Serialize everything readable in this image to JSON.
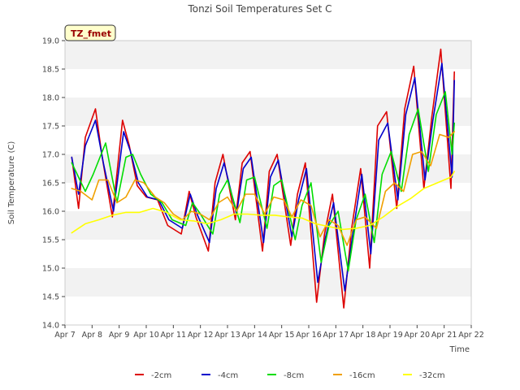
{
  "chart_data": {
    "type": "line",
    "title": "Tonzi Soil Temperatures Set C",
    "xlabel": "Time",
    "ylabel": "Soil Temperature (C)",
    "annotation": "TZ_fmet",
    "x_ticks": [
      "Apr 7",
      "Apr 8",
      "Apr 9",
      "Apr 10",
      "Apr 11",
      "Apr 12",
      "Apr 13",
      "Apr 14",
      "Apr 15",
      "Apr 16",
      "Apr 17",
      "Apr 18",
      "Apr 19",
      "Apr 20",
      "Apr 21",
      "Apr 22"
    ],
    "y_ticks": [
      "14.0",
      "14.5",
      "15.0",
      "15.5",
      "16.0",
      "16.5",
      "17.0",
      "17.5",
      "18.0",
      "18.5",
      "19.0"
    ],
    "xlim": [
      "Apr 7",
      "Apr 22"
    ],
    "ylim": [
      14.0,
      19.0
    ],
    "grid": "horizontal bands",
    "legend_position": "bottom",
    "series": [
      {
        "name": "-2cm",
        "color": "#dd0000",
        "x": [
          "Apr 7 06:00",
          "Apr 7 12:00",
          "Apr 7 18:00",
          "Apr 8 03:00",
          "Apr 8 09:00",
          "Apr 8 18:00",
          "Apr 9 03:00",
          "Apr 9 09:00",
          "Apr 9 16:00",
          "Apr 10 00:00",
          "Apr 10 10:00",
          "Apr 10 19:00",
          "Apr 11 07:00",
          "Apr 11 14:00",
          "Apr 11 20:00",
          "Apr 12 07:00",
          "Apr 12 13:00",
          "Apr 12 20:00",
          "Apr 13 07:00",
          "Apr 13 13:00",
          "Apr 13 20:00",
          "Apr 14 07:00",
          "Apr 14 13:00",
          "Apr 14 20:00",
          "Apr 15 08:00",
          "Apr 15 14:00",
          "Apr 15 21:00",
          "Apr 16 07:00",
          "Apr 16 14:00",
          "Apr 16 21:00",
          "Apr 17 07:00",
          "Apr 17 14:00",
          "Apr 17 22:00",
          "Apr 18 06:00",
          "Apr 18 13:00",
          "Apr 18 21:00",
          "Apr 19 06:00",
          "Apr 19 13:00",
          "Apr 19 21:00",
          "Apr 20 06:00",
          "Apr 20 13:00",
          "Apr 20 21:00",
          "Apr 21 06:00",
          "Apr 21 09:00"
        ],
        "values": [
          16.95,
          16.05,
          17.3,
          17.8,
          16.95,
          15.9,
          17.6,
          17.15,
          16.45,
          16.25,
          16.2,
          15.75,
          15.6,
          16.35,
          15.9,
          15.3,
          16.5,
          17.0,
          15.85,
          16.85,
          17.05,
          15.3,
          16.7,
          17.0,
          15.4,
          16.3,
          16.85,
          14.4,
          15.6,
          16.3,
          14.3,
          15.7,
          16.75,
          15.0,
          17.5,
          17.75,
          16.05,
          17.8,
          18.55,
          16.4,
          17.65,
          18.85,
          16.4,
          18.45
        ]
      },
      {
        "name": "-4cm",
        "color": "#0000cc",
        "x": [
          "Apr 7 06:00",
          "Apr 7 12:00",
          "Apr 7 18:00",
          "Apr 8 03:00",
          "Apr 8 10:00",
          "Apr 8 19:00",
          "Apr 9 04:00",
          "Apr 9 10:00",
          "Apr 9 17:00",
          "Apr 10 01:00",
          "Apr 10 11:00",
          "Apr 10 20:00",
          "Apr 11 08:00",
          "Apr 11 15:00",
          "Apr 11 21:00",
          "Apr 12 08:00",
          "Apr 12 14:00",
          "Apr 12 21:00",
          "Apr 13 08:00",
          "Apr 13 14:00",
          "Apr 13 21:00",
          "Apr 14 08:00",
          "Apr 14 14:00",
          "Apr 14 21:00",
          "Apr 15 09:00",
          "Apr 15 15:00",
          "Apr 15 22:00",
          "Apr 16 08:00",
          "Apr 16 15:00",
          "Apr 16 22:00",
          "Apr 17 08:00",
          "Apr 17 15:00",
          "Apr 17 23:00",
          "Apr 18 07:00",
          "Apr 18 14:00",
          "Apr 18 22:00",
          "Apr 19 07:00",
          "Apr 19 14:00",
          "Apr 19 22:00",
          "Apr 20 07:00",
          "Apr 20 14:00",
          "Apr 20 22:00",
          "Apr 21 07:00",
          "Apr 21 09:00"
        ],
        "values": [
          16.95,
          16.3,
          17.15,
          17.6,
          16.85,
          16.0,
          17.4,
          17.05,
          16.5,
          16.25,
          16.2,
          15.85,
          15.7,
          16.3,
          15.95,
          15.45,
          16.4,
          16.85,
          15.95,
          16.75,
          16.95,
          15.45,
          16.6,
          16.9,
          15.55,
          16.2,
          16.75,
          14.75,
          15.55,
          16.15,
          14.6,
          15.6,
          16.65,
          15.25,
          17.25,
          17.55,
          16.2,
          17.7,
          18.35,
          16.55,
          17.6,
          18.6,
          16.6,
          18.3
        ]
      },
      {
        "name": "-8cm",
        "color": "#00dd00",
        "x": [
          "Apr 7 06:00",
          "Apr 7 18:00",
          "Apr 8 01:00",
          "Apr 8 12:00",
          "Apr 8 22:00",
          "Apr 9 06:00",
          "Apr 9 12:00",
          "Apr 9 19:00",
          "Apr 10 04:00",
          "Apr 10 14:00",
          "Apr 10 23:00",
          "Apr 11 11:00",
          "Apr 11 17:00",
          "Apr 12 00:00",
          "Apr 12 11:00",
          "Apr 12 17:00",
          "Apr 13 00:00",
          "Apr 13 11:00",
          "Apr 13 17:00",
          "Apr 14 00:00",
          "Apr 14 11:00",
          "Apr 14 17:00",
          "Apr 15 00:00",
          "Apr 15 12:00",
          "Apr 15 18:00",
          "Apr 16 02:00",
          "Apr 16 11:00",
          "Apr 16 18:00",
          "Apr 17 02:00",
          "Apr 17 11:00",
          "Apr 17 18:00",
          "Apr 18 02:00",
          "Apr 18 10:00",
          "Apr 18 17:00",
          "Apr 19 01:00",
          "Apr 19 10:00",
          "Apr 19 17:00",
          "Apr 20 01:00",
          "Apr 20 10:00",
          "Apr 20 17:00",
          "Apr 21 01:00",
          "Apr 21 07:00",
          "Apr 21 09:00"
        ],
        "values": [
          16.85,
          16.35,
          16.65,
          17.2,
          16.15,
          16.95,
          17.0,
          16.65,
          16.3,
          16.15,
          15.85,
          15.75,
          16.15,
          15.95,
          15.6,
          16.3,
          16.55,
          15.8,
          16.55,
          16.6,
          15.7,
          16.45,
          16.55,
          15.5,
          16.1,
          16.5,
          15.1,
          15.75,
          16.0,
          14.95,
          15.85,
          16.3,
          15.45,
          16.65,
          17.05,
          16.35,
          17.35,
          17.8,
          16.7,
          17.7,
          18.1,
          17.0,
          17.55
        ]
      },
      {
        "name": "-16cm",
        "color": "#f0a000",
        "x": [
          "Apr 7 06:00",
          "Apr 7 14:00",
          "Apr 8 00:00",
          "Apr 8 06:00",
          "Apr 8 14:00",
          "Apr 8 22:00",
          "Apr 9 06:00",
          "Apr 9 14:00",
          "Apr 9 22:00",
          "Apr 10 08:00",
          "Apr 10 16:00",
          "Apr 11 00:00",
          "Apr 11 08:00",
          "Apr 11 16:00",
          "Apr 12 00:00",
          "Apr 12 08:00",
          "Apr 12 16:00",
          "Apr 13 00:00",
          "Apr 13 08:00",
          "Apr 13 16:00",
          "Apr 14 00:00",
          "Apr 14 09:00",
          "Apr 14 17:00",
          "Apr 15 02:00",
          "Apr 15 09:00",
          "Apr 15 17:00",
          "Apr 16 02:00",
          "Apr 16 10:00",
          "Apr 16 18:00",
          "Apr 17 02:00",
          "Apr 17 10:00",
          "Apr 17 18:00",
          "Apr 18 02:00",
          "Apr 18 12:00",
          "Apr 18 20:00",
          "Apr 19 04:00",
          "Apr 19 12:00",
          "Apr 19 20:00",
          "Apr 20 04:00",
          "Apr 20 12:00",
          "Apr 20 20:00",
          "Apr 21 04:00",
          "Apr 21 09:00"
        ],
        "values": [
          16.4,
          16.35,
          16.2,
          16.55,
          16.55,
          16.15,
          16.25,
          16.55,
          16.5,
          16.25,
          16.15,
          15.95,
          15.85,
          16.0,
          15.95,
          15.85,
          16.15,
          16.25,
          16.0,
          16.3,
          16.3,
          15.95,
          16.25,
          16.2,
          15.9,
          16.2,
          16.1,
          15.55,
          15.85,
          15.75,
          15.4,
          15.85,
          15.9,
          15.7,
          16.35,
          16.5,
          16.35,
          17.0,
          17.05,
          16.8,
          17.35,
          17.3,
          17.4
        ]
      },
      {
        "name": "-32cm",
        "color": "#ffff00",
        "x": [
          "Apr 7 06:00",
          "Apr 7 18:00",
          "Apr 8 06:00",
          "Apr 8 18:00",
          "Apr 9 06:00",
          "Apr 9 18:00",
          "Apr 10 06:00",
          "Apr 10 18:00",
          "Apr 11 06:00",
          "Apr 11 18:00",
          "Apr 12 06:00",
          "Apr 12 18:00",
          "Apr 13 06:00",
          "Apr 13 18:00",
          "Apr 14 06:00",
          "Apr 14 18:00",
          "Apr 15 06:00",
          "Apr 15 18:00",
          "Apr 16 06:00",
          "Apr 16 18:00",
          "Apr 17 06:00",
          "Apr 17 18:00",
          "Apr 18 06:00",
          "Apr 18 18:00",
          "Apr 19 06:00",
          "Apr 19 18:00",
          "Apr 20 06:00",
          "Apr 20 18:00",
          "Apr 21 06:00",
          "Apr 21 09:00"
        ],
        "values": [
          15.62,
          15.78,
          15.85,
          15.93,
          15.98,
          15.98,
          16.05,
          15.98,
          15.85,
          15.83,
          15.78,
          15.85,
          15.95,
          15.95,
          15.93,
          15.93,
          15.9,
          15.88,
          15.78,
          15.73,
          15.68,
          15.7,
          15.75,
          15.9,
          16.08,
          16.22,
          16.4,
          16.5,
          16.6,
          16.7
        ]
      }
    ]
  }
}
